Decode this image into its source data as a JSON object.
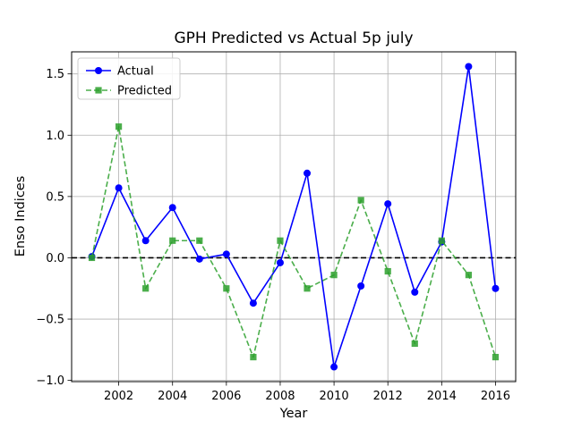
{
  "chart_data": {
    "type": "line",
    "title": "GPH Predicted vs Actual 5p july",
    "xlabel": "Year",
    "ylabel": "Enso Indices",
    "x": [
      2001,
      2002,
      2003,
      2004,
      2005,
      2006,
      2007,
      2008,
      2009,
      2010,
      2011,
      2012,
      2013,
      2014,
      2015,
      2016
    ],
    "xlim": [
      2000.25,
      2016.75
    ],
    "ylim": [
      -1.01,
      1.68
    ],
    "xticks": [
      2002,
      2004,
      2006,
      2008,
      2010,
      2012,
      2014,
      2016
    ],
    "xtick_labels": [
      "2002",
      "2004",
      "2006",
      "2008",
      "2010",
      "2012",
      "2014",
      "2016"
    ],
    "yticks": [
      -1.0,
      -0.5,
      0.0,
      0.5,
      1.0,
      1.5
    ],
    "ytick_labels": [
      "−1.0",
      "−0.5",
      "0.0",
      "0.5",
      "1.0",
      "1.5"
    ],
    "grid": true,
    "legend_position": "upper-left",
    "reference_line": {
      "y": 0.0,
      "style": "dashed",
      "color": "#000000"
    },
    "series": [
      {
        "name": "Actual",
        "color": "#0000ff",
        "line_style": "solid",
        "marker": "circle",
        "values": [
          0.01,
          0.57,
          0.14,
          0.41,
          -0.01,
          0.03,
          -0.37,
          -0.04,
          0.69,
          -0.89,
          -0.23,
          0.44,
          -0.28,
          0.13,
          1.56,
          -0.25
        ]
      },
      {
        "name": "Predicted",
        "color": "#2ca02c",
        "line_style": "dashed",
        "marker": "square",
        "values": [
          0.0,
          1.07,
          -0.25,
          0.14,
          0.14,
          -0.25,
          -0.81,
          0.14,
          -0.25,
          -0.14,
          0.47,
          -0.11,
          -0.7,
          0.14,
          -0.14,
          -0.81
        ]
      }
    ]
  }
}
